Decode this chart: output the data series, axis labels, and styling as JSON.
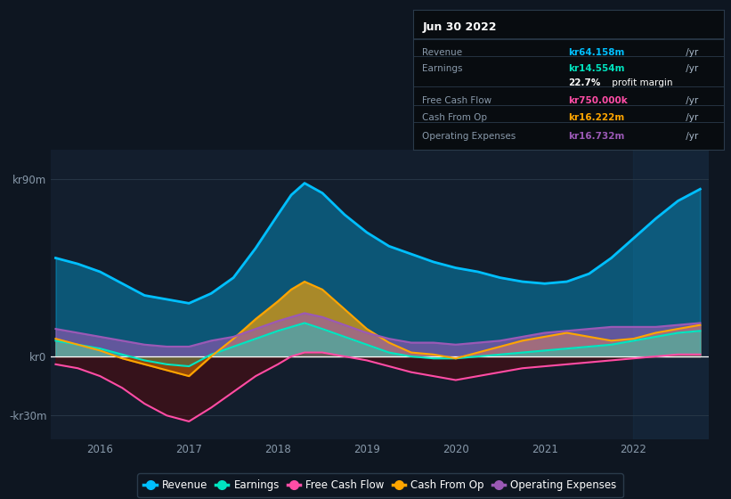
{
  "bg_color": "#0e1621",
  "plot_bg_color": "#131e2d",
  "grid_color": "#2a3a4a",
  "title_date": "Jun 30 2022",
  "yticks_labels": [
    "kr90m",
    "kr0",
    "-kr30m"
  ],
  "yticks_values": [
    90,
    0,
    -30
  ],
  "xlim": [
    2015.45,
    2022.85
  ],
  "ylim": [
    -42,
    105
  ],
  "legend": [
    {
      "label": "Revenue",
      "color": "#00bfff"
    },
    {
      "label": "Earnings",
      "color": "#00e5c0"
    },
    {
      "label": "Free Cash Flow",
      "color": "#ff4da6"
    },
    {
      "label": "Cash From Op",
      "color": "#ffa500"
    },
    {
      "label": "Operating Expenses",
      "color": "#9b59b6"
    }
  ],
  "series": {
    "x": [
      2015.5,
      2015.75,
      2016.0,
      2016.25,
      2016.5,
      2016.75,
      2017.0,
      2017.25,
      2017.5,
      2017.75,
      2018.0,
      2018.15,
      2018.3,
      2018.5,
      2018.75,
      2019.0,
      2019.25,
      2019.5,
      2019.75,
      2020.0,
      2020.25,
      2020.5,
      2020.75,
      2021.0,
      2021.25,
      2021.5,
      2021.75,
      2022.0,
      2022.25,
      2022.5,
      2022.75
    ],
    "revenue": [
      50,
      47,
      43,
      37,
      31,
      29,
      27,
      32,
      40,
      55,
      72,
      82,
      88,
      83,
      72,
      63,
      56,
      52,
      48,
      45,
      43,
      40,
      38,
      37,
      38,
      42,
      50,
      60,
      70,
      79,
      85
    ],
    "earnings": [
      8,
      6,
      4,
      1,
      -2,
      -4,
      -5,
      1,
      5,
      9,
      13,
      15,
      17,
      14,
      10,
      6,
      2,
      0,
      -1,
      -1,
      0,
      1,
      2,
      3,
      4,
      5,
      6,
      8,
      10,
      12,
      13
    ],
    "free_cash_flow": [
      -4,
      -6,
      -10,
      -16,
      -24,
      -30,
      -33,
      -26,
      -18,
      -10,
      -4,
      0,
      2,
      2,
      0,
      -2,
      -5,
      -8,
      -10,
      -12,
      -10,
      -8,
      -6,
      -5,
      -4,
      -3,
      -2,
      -1,
      0,
      1,
      1
    ],
    "cash_from_op": [
      9,
      6,
      3,
      -1,
      -4,
      -7,
      -10,
      0,
      9,
      19,
      28,
      34,
      38,
      34,
      24,
      14,
      7,
      2,
      1,
      -1,
      2,
      5,
      8,
      10,
      12,
      10,
      8,
      9,
      12,
      14,
      16
    ],
    "op_expenses": [
      14,
      12,
      10,
      8,
      6,
      5,
      5,
      8,
      10,
      14,
      18,
      20,
      22,
      20,
      16,
      12,
      9,
      7,
      7,
      6,
      7,
      8,
      10,
      12,
      13,
      14,
      15,
      15,
      15,
      16,
      17
    ]
  },
  "shade_right_x": 2022.0,
  "xtick_years": [
    2016,
    2017,
    2018,
    2019,
    2020,
    2021,
    2022
  ],
  "rows": [
    {
      "label": "Revenue",
      "value": "kr64.158m",
      "value_color": "#00bfff"
    },
    {
      "label": "Earnings",
      "value": "kr14.554m",
      "value_color": "#00e5c0",
      "extra": "22.7% profit margin"
    },
    {
      "label": "Free Cash Flow",
      "value": "kr750.000k",
      "value_color": "#ff4da6"
    },
    {
      "label": "Cash From Op",
      "value": "kr16.222m",
      "value_color": "#ffa500"
    },
    {
      "label": "Operating Expenses",
      "value": "kr16.732m",
      "value_color": "#9b59b6"
    }
  ]
}
